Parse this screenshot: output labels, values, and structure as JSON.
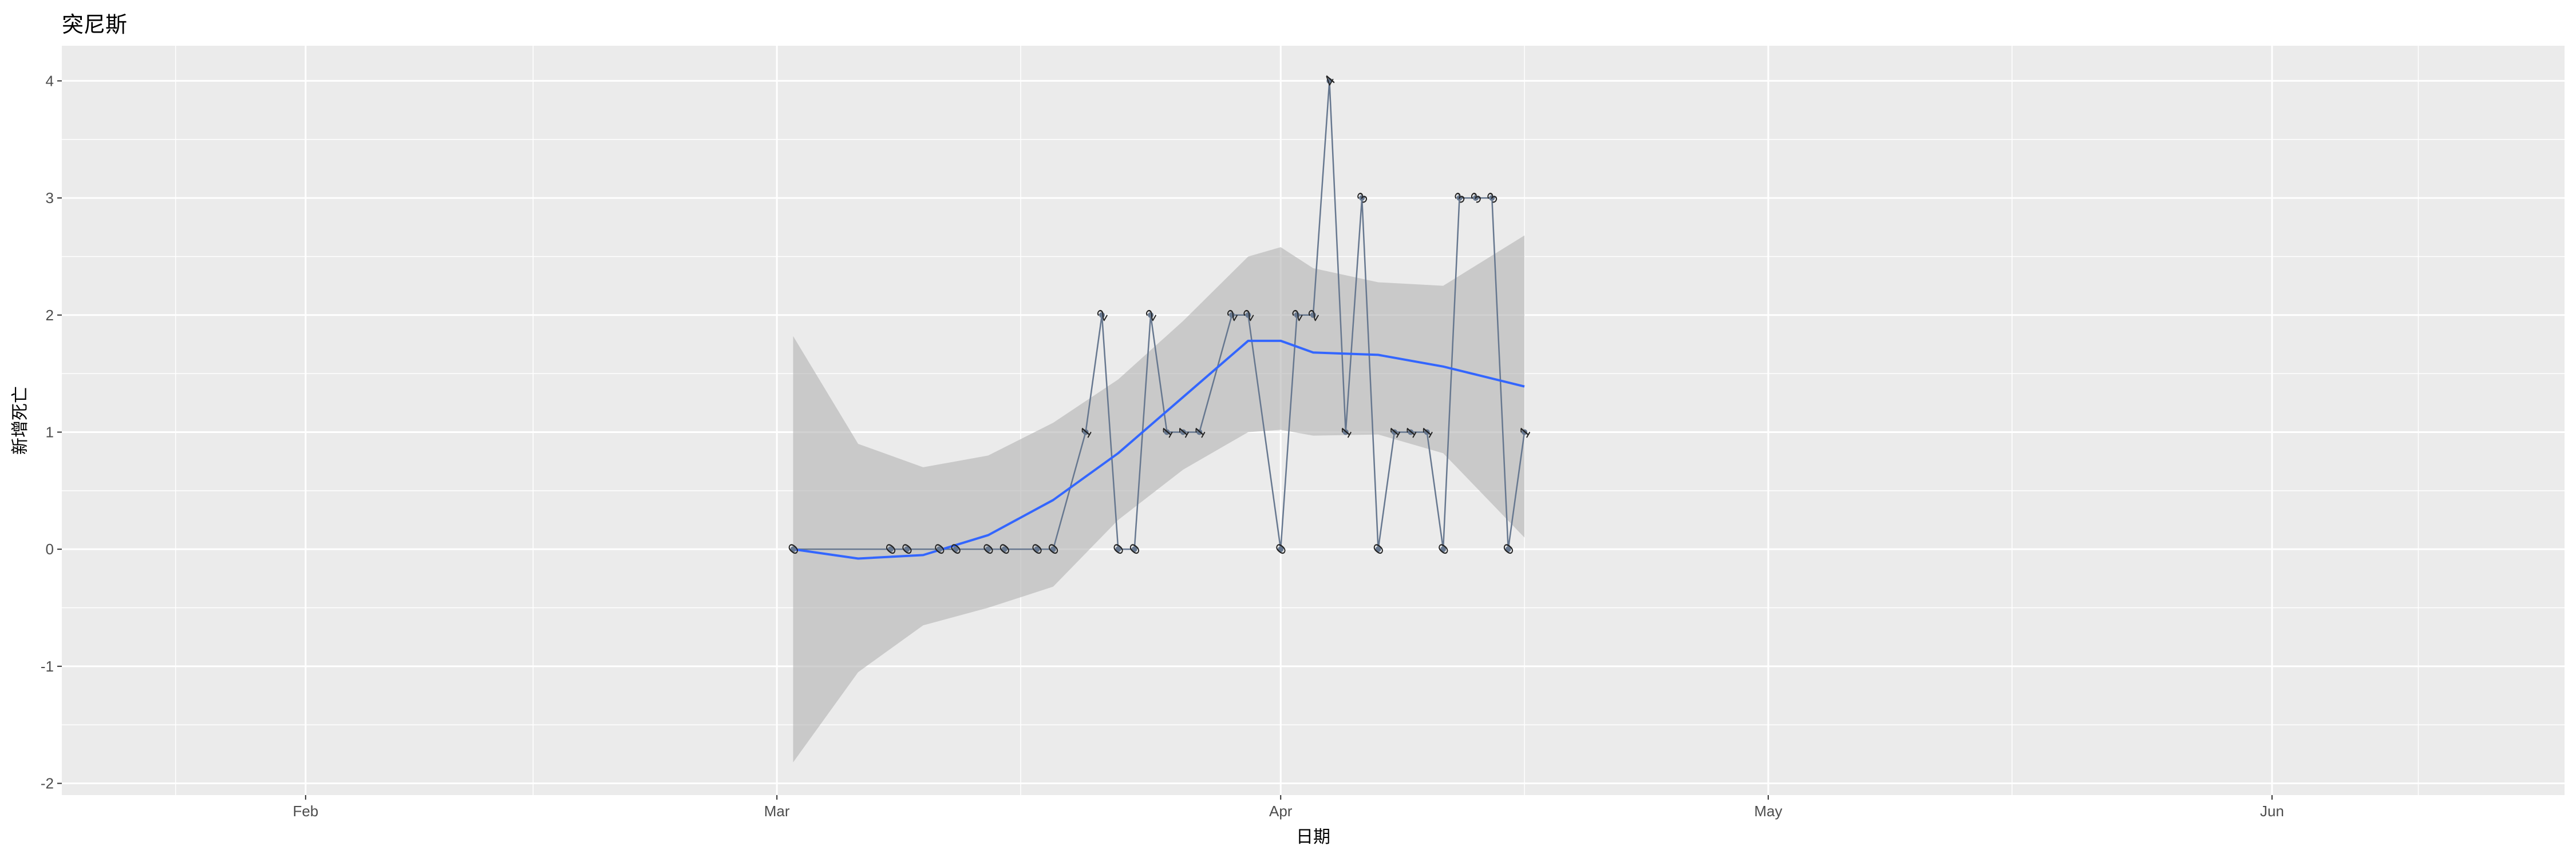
{
  "title": "突尼斯",
  "chart_data": {
    "type": "line",
    "title": "突尼斯",
    "xlabel": "日期",
    "ylabel": "新增死亡",
    "x_ticks": [
      "2020-02-01",
      "2020-03-01",
      "2020-04-01",
      "2020-05-01",
      "2020-06-01"
    ],
    "x_tick_labels": [
      "Feb",
      "Mar",
      "Apr",
      "May",
      "Jun"
    ],
    "xlim": [
      "2020-01-17",
      "2020-06-19"
    ],
    "y_ticks": [
      -2,
      -1,
      0,
      1,
      2,
      3,
      4
    ],
    "ylim": [
      -2.1,
      4.3
    ],
    "grid": true,
    "series": [
      {
        "x": [
          "2020-03-02",
          "2020-03-08",
          "2020-03-09",
          "2020-03-11",
          "2020-03-12",
          "2020-03-14",
          "2020-03-15",
          "2020-03-17",
          "2020-03-18",
          "2020-03-20",
          "2020-03-21",
          "2020-03-22",
          "2020-03-23",
          "2020-03-24",
          "2020-03-25",
          "2020-03-26",
          "2020-03-27",
          "2020-03-29",
          "2020-03-30",
          "2020-04-01",
          "2020-04-02",
          "2020-04-03",
          "2020-04-04",
          "2020-04-05",
          "2020-04-06",
          "2020-04-07",
          "2020-04-08",
          "2020-04-09",
          "2020-04-10",
          "2020-04-11",
          "2020-04-12",
          "2020-04-13",
          "2020-04-14",
          "2020-04-15",
          "2020-04-16"
        ],
        "values": [
          0,
          0,
          0,
          0,
          0,
          0,
          0,
          0,
          0,
          1,
          2,
          0,
          0,
          2,
          1,
          1,
          1,
          2,
          2,
          0,
          2,
          2,
          4,
          1,
          3,
          0,
          1,
          1,
          1,
          0,
          3,
          3,
          3,
          0,
          1
        ]
      }
    ],
    "smooth": {
      "x": [
        "2020-03-02",
        "2020-03-06",
        "2020-03-10",
        "2020-03-14",
        "2020-03-18",
        "2020-03-22",
        "2020-03-26",
        "2020-03-30",
        "2020-04-01",
        "2020-04-03",
        "2020-04-07",
        "2020-04-11",
        "2020-04-16"
      ],
      "y": [
        0,
        -0.08,
        -0.05,
        0.12,
        0.42,
        0.82,
        1.3,
        1.78,
        1.78,
        1.68,
        1.66,
        1.56,
        1.39
      ],
      "lower": [
        -1.82,
        -1.05,
        -0.65,
        -0.5,
        -0.32,
        0.25,
        0.68,
        1.0,
        1.02,
        0.97,
        0.98,
        0.82,
        0.1
      ],
      "upper": [
        1.82,
        0.9,
        0.7,
        0.8,
        1.08,
        1.45,
        1.95,
        2.5,
        2.58,
        2.4,
        2.28,
        2.25,
        2.68
      ]
    },
    "colors": {
      "line": "#66778f",
      "smooth": "#3366ff",
      "ribbon": "#b3b3b3",
      "panel": "#ebebeb",
      "grid": "#ffffff"
    }
  }
}
